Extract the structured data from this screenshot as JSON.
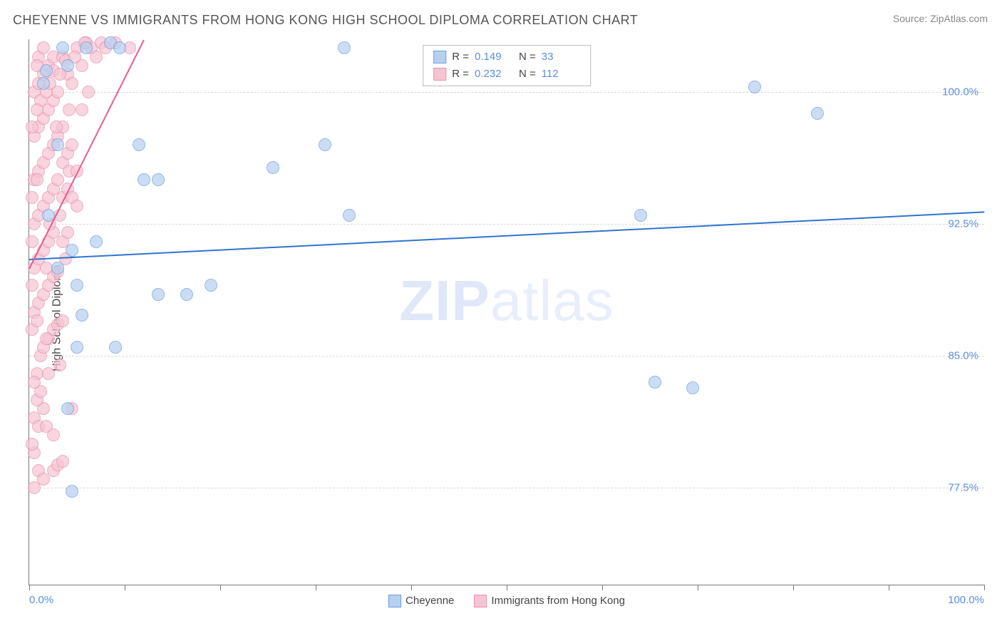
{
  "header": {
    "title": "CHEYENNE VS IMMIGRANTS FROM HONG KONG HIGH SCHOOL DIPLOMA CORRELATION CHART",
    "source": "Source: ZipAtlas.com"
  },
  "chart": {
    "type": "scatter",
    "ylabel": "High School Diploma",
    "x_domain": [
      0,
      100
    ],
    "y_domain": [
      72,
      103
    ],
    "y_ticks": [
      {
        "value": 77.5,
        "label": "77.5%"
      },
      {
        "value": 85.0,
        "label": "85.0%"
      },
      {
        "value": 92.5,
        "label": "92.5%"
      },
      {
        "value": 100.0,
        "label": "100.0%"
      }
    ],
    "x_ticks": [
      0,
      10,
      20,
      30,
      40,
      50,
      60,
      70,
      80,
      90,
      100
    ],
    "x_tick_labels": [
      {
        "value": 0,
        "label": "0.0%"
      },
      {
        "value": 100,
        "label": "100.0%"
      }
    ],
    "ytick_color": "#5b8fdc",
    "xtick_color": "#5b8fdc",
    "grid_color": "#d8d8d8",
    "background_color": "#ffffff",
    "watermark": "ZIPatlas",
    "series": [
      {
        "name": "Cheyenne",
        "fill": "#b8d0f0",
        "stroke": "#6a9ddf",
        "line_color": "#2f74d0",
        "R": "0.149",
        "N": "33",
        "line": {
          "x1": 0,
          "y1": 90.5,
          "x2": 100,
          "y2": 93.2
        },
        "points": [
          [
            1.5,
            100.5
          ],
          [
            1.8,
            101.2
          ],
          [
            3.5,
            102.5
          ],
          [
            8.5,
            102.8
          ],
          [
            3.0,
            97.0
          ],
          [
            4.5,
            91.0
          ],
          [
            5.0,
            89.0
          ],
          [
            5.5,
            87.3
          ],
          [
            5.0,
            85.5
          ],
          [
            4.0,
            82.0
          ],
          [
            4.5,
            77.3
          ],
          [
            11.5,
            97.0
          ],
          [
            12.0,
            95.0
          ],
          [
            13.5,
            95.0
          ],
          [
            13.5,
            88.5
          ],
          [
            16.5,
            88.5
          ],
          [
            9.0,
            85.5
          ],
          [
            25.5,
            95.7
          ],
          [
            31.0,
            97.0
          ],
          [
            33.0,
            102.5
          ],
          [
            33.5,
            93.0
          ],
          [
            64.0,
            93.0
          ],
          [
            65.5,
            83.5
          ],
          [
            69.5,
            83.2
          ],
          [
            76.0,
            100.3
          ],
          [
            82.5,
            98.8
          ],
          [
            4.0,
            101.5
          ],
          [
            6.0,
            102.5
          ],
          [
            2.0,
            93.0
          ],
          [
            3.0,
            90.0
          ],
          [
            7.0,
            91.5
          ],
          [
            9.5,
            102.5
          ],
          [
            19.0,
            89.0
          ]
        ]
      },
      {
        "name": "Immigrants from Hong Kong",
        "fill": "#f6c5d3",
        "stroke": "#ea8fb0",
        "line_color": "#e75d8e",
        "R": "0.232",
        "N": "112",
        "line": {
          "x1": 0,
          "y1": 90.0,
          "x2": 12,
          "y2": 103
        },
        "points": [
          [
            0.5,
            79.5
          ],
          [
            1.0,
            78.5
          ],
          [
            1.5,
            78.0
          ],
          [
            2.5,
            78.5
          ],
          [
            3.0,
            78.8
          ],
          [
            3.5,
            79.0
          ],
          [
            0.5,
            81.5
          ],
          [
            1.0,
            81.0
          ],
          [
            1.5,
            82.0
          ],
          [
            4.5,
            82.0
          ],
          [
            0.8,
            84.0
          ],
          [
            1.2,
            85.0
          ],
          [
            1.5,
            85.5
          ],
          [
            2.0,
            86.0
          ],
          [
            2.5,
            86.5
          ],
          [
            3.0,
            86.8
          ],
          [
            3.5,
            87.0
          ],
          [
            0.5,
            87.5
          ],
          [
            1.0,
            88.0
          ],
          [
            1.5,
            88.5
          ],
          [
            2.0,
            89.0
          ],
          [
            2.5,
            89.5
          ],
          [
            3.0,
            89.8
          ],
          [
            0.5,
            90.0
          ],
          [
            1.0,
            90.5
          ],
          [
            1.5,
            91.0
          ],
          [
            2.0,
            91.5
          ],
          [
            2.5,
            92.0
          ],
          [
            3.5,
            91.5
          ],
          [
            4.0,
            92.0
          ],
          [
            0.5,
            92.5
          ],
          [
            1.0,
            93.0
          ],
          [
            1.5,
            93.5
          ],
          [
            2.0,
            94.0
          ],
          [
            2.5,
            94.5
          ],
          [
            3.0,
            95.0
          ],
          [
            3.5,
            94.0
          ],
          [
            4.0,
            94.5
          ],
          [
            4.5,
            94.0
          ],
          [
            5.0,
            93.5
          ],
          [
            0.5,
            95.0
          ],
          [
            1.0,
            95.5
          ],
          [
            1.5,
            96.0
          ],
          [
            2.0,
            96.5
          ],
          [
            2.5,
            97.0
          ],
          [
            3.0,
            97.5
          ],
          [
            3.5,
            96.0
          ],
          [
            4.0,
            96.5
          ],
          [
            0.5,
            97.5
          ],
          [
            1.0,
            98.0
          ],
          [
            1.5,
            98.5
          ],
          [
            2.0,
            99.0
          ],
          [
            2.5,
            99.5
          ],
          [
            3.5,
            98.0
          ],
          [
            4.5,
            97.0
          ],
          [
            0.5,
            100.0
          ],
          [
            1.0,
            100.5
          ],
          [
            1.5,
            101.0
          ],
          [
            2.0,
            101.5
          ],
          [
            2.5,
            101.2
          ],
          [
            1.0,
            102.0
          ],
          [
            1.5,
            102.5
          ],
          [
            2.5,
            102.0
          ],
          [
            3.5,
            102.0
          ],
          [
            4.0,
            101.0
          ],
          [
            4.5,
            100.5
          ],
          [
            5.0,
            102.5
          ],
          [
            5.5,
            101.5
          ],
          [
            6.0,
            102.8
          ],
          [
            6.5,
            102.5
          ],
          [
            7.0,
            102.0
          ],
          [
            7.5,
            102.8
          ],
          [
            10.5,
            102.5
          ],
          [
            3.0,
            100.0
          ],
          [
            0.3,
            86.5
          ],
          [
            0.3,
            89.0
          ],
          [
            0.3,
            91.5
          ],
          [
            0.3,
            94.0
          ],
          [
            0.8,
            82.5
          ],
          [
            1.2,
            83.0
          ],
          [
            0.5,
            83.5
          ],
          [
            0.8,
            87.0
          ],
          [
            1.8,
            90.0
          ],
          [
            2.2,
            92.5
          ],
          [
            3.2,
            93.0
          ],
          [
            4.2,
            95.5
          ],
          [
            5.0,
            95.5
          ],
          [
            3.8,
            90.5
          ],
          [
            1.8,
            86.0
          ],
          [
            0.8,
            95.0
          ],
          [
            2.8,
            98.0
          ],
          [
            4.2,
            99.0
          ],
          [
            1.2,
            99.5
          ],
          [
            1.8,
            100.0
          ],
          [
            2.2,
            100.5
          ],
          [
            3.2,
            101.0
          ],
          [
            0.8,
            101.5
          ],
          [
            3.8,
            101.8
          ],
          [
            5.5,
            99.0
          ],
          [
            6.2,
            100.0
          ],
          [
            2.0,
            84.0
          ],
          [
            0.3,
            80.0
          ],
          [
            1.8,
            81.0
          ],
          [
            3.2,
            84.5
          ],
          [
            0.5,
            77.5
          ],
          [
            2.5,
            80.5
          ],
          [
            0.3,
            98.0
          ],
          [
            0.8,
            99.0
          ],
          [
            4.8,
            102.0
          ],
          [
            5.8,
            102.8
          ],
          [
            8.0,
            102.5
          ],
          [
            9.0,
            102.8
          ]
        ]
      }
    ],
    "legend_bottom": [
      {
        "swatch_fill": "#b8d0f0",
        "swatch_stroke": "#6a9ddf",
        "label": "Cheyenne"
      },
      {
        "swatch_fill": "#f6c5d3",
        "swatch_stroke": "#ea8fb0",
        "label": "Immigrants from Hong Kong"
      }
    ]
  }
}
